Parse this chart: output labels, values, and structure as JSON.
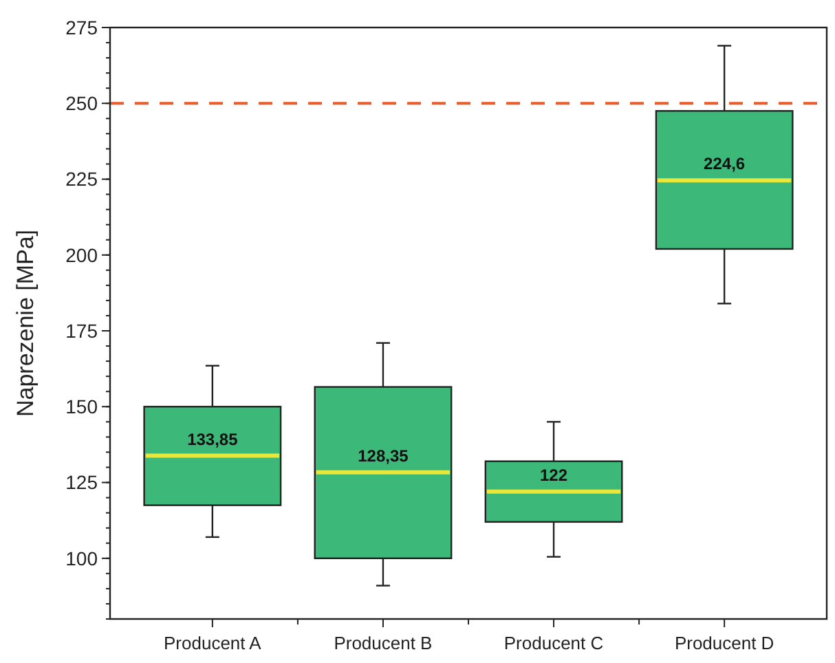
{
  "chart_data": {
    "type": "box",
    "ylabel": "Naprezenie [MPa]",
    "categories": [
      "Producent A",
      "Producent B",
      "Producent C",
      "Producent D"
    ],
    "series": [
      {
        "color": "#3cb878",
        "boxes": [
          {
            "low": 107,
            "q1": 117.5,
            "median": 133.85,
            "q3": 150,
            "high": 163.5
          },
          {
            "low": 91,
            "q1": 100,
            "median": 128.35,
            "q3": 156.5,
            "high": 171
          },
          {
            "low": 100.5,
            "q1": 112,
            "median": 122,
            "q3": 132,
            "high": 145
          },
          {
            "low": 184,
            "q1": 202,
            "median": 224.6,
            "q3": 247.5,
            "high": 269
          }
        ]
      }
    ],
    "value_labels": [
      "133,85",
      "128,35",
      "122",
      "224,6"
    ],
    "ylim": [
      80,
      275
    ],
    "yticks": [
      100,
      125,
      150,
      175,
      200,
      225,
      250,
      275
    ],
    "ref_lines": [
      {
        "axis": "y",
        "value": 250,
        "color": "#f05a28",
        "line_style": "dashed"
      }
    ],
    "grid": false
  }
}
